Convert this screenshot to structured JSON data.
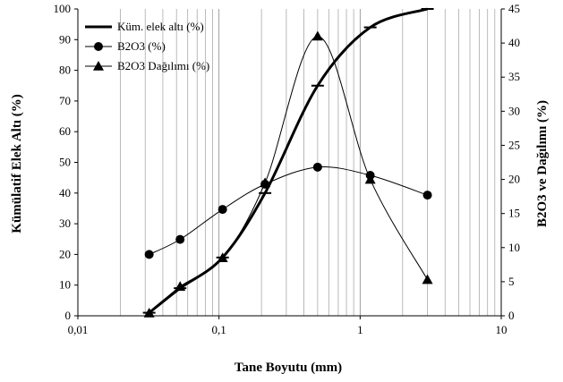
{
  "chart_data": {
    "type": "line",
    "xlabel": "Tane Boyutu (mm)",
    "ylabel": "Kümülatif  Elek Altı (%)",
    "y2label": "B2O3 ve Dağılımı  (%)",
    "x_scale": "log",
    "xlim": [
      0.01,
      10
    ],
    "ylim": [
      0,
      100
    ],
    "y2lim": [
      0,
      45
    ],
    "x_ticks": [
      "0,01",
      "0,1",
      "1",
      "10"
    ],
    "y_ticks": [
      "0",
      "10",
      "20",
      "30",
      "40",
      "50",
      "60",
      "70",
      "80",
      "90",
      "100"
    ],
    "y2_ticks": [
      "0",
      "5",
      "10",
      "15",
      "20",
      "25",
      "30",
      "35",
      "40",
      "45"
    ],
    "grid": "vertical minor log gridlines",
    "legend_position": "top-left",
    "series": [
      {
        "name": "Küm. elek altı (%)",
        "axis": "left",
        "marker": "dash",
        "color": "#000000",
        "x": [
          0.032,
          0.053,
          0.106,
          0.212,
          0.5,
          1.18,
          3.0
        ],
        "y": [
          1,
          9,
          19,
          40,
          75,
          94,
          100
        ]
      },
      {
        "name": "B2O3 (%)",
        "axis": "right",
        "marker": "circle",
        "color": "#000000",
        "x": [
          0.032,
          0.053,
          0.106,
          0.212,
          0.5,
          1.18,
          3.0
        ],
        "y": [
          9.0,
          11.2,
          15.6,
          19.3,
          21.8,
          20.6,
          17.7
        ]
      },
      {
        "name": "B2O3 Dağılımı (%)",
        "axis": "right",
        "marker": "triangle",
        "color": "#000000",
        "x": [
          0.032,
          0.053,
          0.106,
          0.212,
          0.5,
          1.18,
          3.0
        ],
        "y": [
          0.4,
          4.3,
          8.5,
          19.5,
          41.0,
          20.0,
          5.3
        ]
      }
    ]
  }
}
